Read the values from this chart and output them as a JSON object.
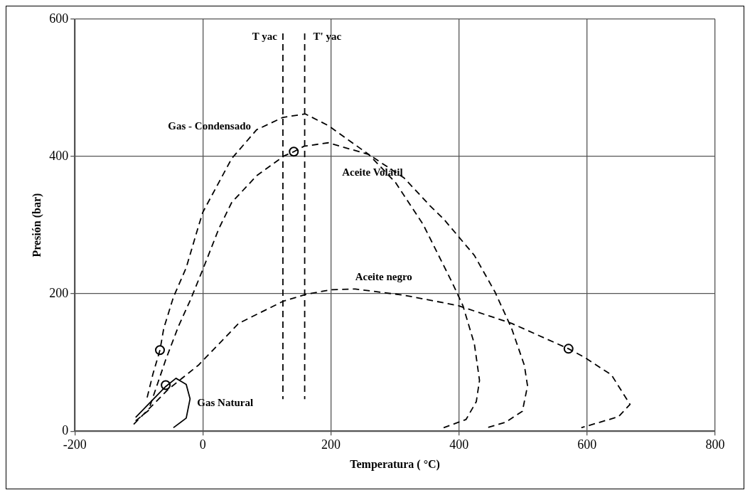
{
  "chart_data": {
    "type": "line",
    "xlabel": "Temperatura ( °C)",
    "ylabel": "Presión (bar)",
    "xlim": [
      -200,
      800
    ],
    "ylim": [
      0,
      600
    ],
    "xticks": [
      -200,
      0,
      200,
      400,
      600,
      800
    ],
    "yticks": [
      0,
      200,
      400,
      600
    ],
    "grid": true,
    "legend": false,
    "series": [
      {
        "name": "Gas - Condensado",
        "color": "#000000",
        "line_style": "dashed",
        "x": [
          -87,
          -78,
          -67,
          -61,
          -46,
          -26,
          -7,
          0,
          45,
          84,
          125,
          160,
          196,
          259,
          301,
          344,
          389,
          406,
          424,
          432,
          427,
          411,
          376
        ],
        "values": [
          49,
          83,
          118,
          150,
          195,
          238,
          298,
          319,
          397,
          439,
          457,
          462,
          445,
          403,
          362,
          301,
          217,
          183,
          127,
          74,
          43,
          17,
          5
        ]
      },
      {
        "name": "Aceite Volátil",
        "color": "#000000",
        "line_style": "dashed",
        "x": [
          -105,
          -85,
          -58,
          -38,
          -19,
          1,
          25,
          45,
          84,
          127,
          142,
          158,
          196,
          259,
          314,
          355,
          376,
          424,
          456,
          482,
          502,
          507,
          499,
          473,
          444
        ],
        "values": [
          15,
          30,
          104,
          153,
          192,
          238,
          295,
          333,
          372,
          401,
          407,
          415,
          420,
          403,
          369,
          328,
          309,
          256,
          203,
          150,
          96,
          66,
          29,
          13,
          5
        ]
      },
      {
        "name": "Aceite negro",
        "color": "#000000",
        "line_style": "dashed",
        "x": [
          -108,
          -54,
          -7,
          56,
          125,
          160,
          200,
          238,
          314,
          398,
          482,
          571,
          595,
          638,
          667,
          649,
          591
        ],
        "values": [
          10,
          61,
          96,
          157,
          189,
          199,
          206,
          207,
          198,
          183,
          157,
          120,
          108,
          82,
          39,
          21,
          5
        ]
      },
      {
        "name": "Gas Natural",
        "color": "#000000",
        "line_style": "solid",
        "x": [
          -105,
          -58,
          -42,
          -26,
          -20,
          -26,
          -46
        ],
        "values": [
          20,
          65,
          77,
          68,
          47,
          19,
          5
        ]
      },
      {
        "type": "scatter",
        "color": "#000000",
        "marker": "circle",
        "x": [
          -67,
          -58,
          142,
          571
        ],
        "values": [
          118,
          67,
          407,
          120
        ]
      }
    ],
    "ref_lines": [
      {
        "axis": "x",
        "value": 125,
        "label": "T yac",
        "line_style": "dashed",
        "color": "#000000"
      },
      {
        "axis": "x",
        "value": 159,
        "label": "T' yac",
        "line_style": "dashed",
        "color": "#000000"
      }
    ]
  }
}
